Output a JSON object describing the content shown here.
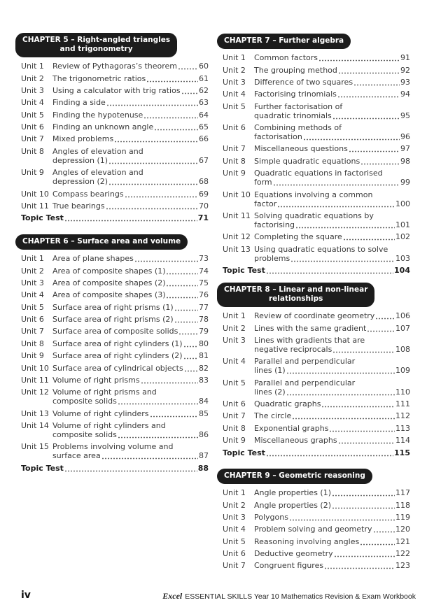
{
  "chapters": [
    {
      "header": [
        "CHAPTER 5 – Right-angled triangles",
        "and trigonometry"
      ],
      "units": [
        {
          "label": "Unit 1",
          "lines": [
            "Review of Pythagoras’s theorem"
          ],
          "page": "60"
        },
        {
          "label": "Unit 2",
          "lines": [
            "The trigonometric ratios"
          ],
          "page": "61"
        },
        {
          "label": "Unit 3",
          "lines": [
            "Using a calculator with trig ratios"
          ],
          "page": "62"
        },
        {
          "label": "Unit 4",
          "lines": [
            "Finding a side"
          ],
          "page": "63"
        },
        {
          "label": "Unit 5",
          "lines": [
            "Finding the hypotenuse"
          ],
          "page": "64"
        },
        {
          "label": "Unit 6",
          "lines": [
            "Finding an unknown angle"
          ],
          "page": "65"
        },
        {
          "label": "Unit 7",
          "lines": [
            "Mixed problems"
          ],
          "page": "66"
        },
        {
          "label": "Unit 8",
          "lines": [
            "Angles of elevation and",
            "depression (1)"
          ],
          "page": "67"
        },
        {
          "label": "Unit 9",
          "lines": [
            "Angles of elevation and",
            "depression (2)"
          ],
          "page": "68"
        },
        {
          "label": "Unit 10",
          "lines": [
            "Compass bearings"
          ],
          "page": "69"
        },
        {
          "label": "Unit 11",
          "lines": [
            "True bearings"
          ],
          "page": "70"
        }
      ],
      "topic_test": {
        "label": "Topic Test",
        "page": "71"
      }
    },
    {
      "header": [
        "CHAPTER 6 – Surface area and volume"
      ],
      "units": [
        {
          "label": "Unit 1",
          "lines": [
            "Area of plane shapes"
          ],
          "page": "73"
        },
        {
          "label": "Unit 2",
          "lines": [
            "Area of composite shapes (1)"
          ],
          "page": "74"
        },
        {
          "label": "Unit 3",
          "lines": [
            "Area of composite shapes (2)"
          ],
          "page": "75"
        },
        {
          "label": "Unit 4",
          "lines": [
            "Area of composite shapes (3)"
          ],
          "page": "76"
        },
        {
          "label": "Unit 5",
          "lines": [
            "Surface area of right prisms (1)"
          ],
          "page": "77"
        },
        {
          "label": "Unit 6",
          "lines": [
            "Surface area of right prisms (2)"
          ],
          "page": "78"
        },
        {
          "label": "Unit 7",
          "lines": [
            "Surface area of composite solids"
          ],
          "page": "79"
        },
        {
          "label": "Unit 8",
          "lines": [
            "Surface area of right cylinders (1)"
          ],
          "page": "80"
        },
        {
          "label": "Unit 9",
          "lines": [
            "Surface area of right cylinders (2)"
          ],
          "page": "81"
        },
        {
          "label": "Unit 10",
          "lines": [
            "Surface area of cylindrical objects"
          ],
          "page": "82"
        },
        {
          "label": "Unit 11",
          "lines": [
            "Volume of right prisms"
          ],
          "page": "83"
        },
        {
          "label": "Unit 12",
          "lines": [
            "Volume of right prisms and",
            "composite solids"
          ],
          "page": "84"
        },
        {
          "label": "Unit 13",
          "lines": [
            "Volume of right cylinders"
          ],
          "page": "85"
        },
        {
          "label": "Unit 14",
          "lines": [
            "Volume of right cylinders and",
            "composite solids"
          ],
          "page": "86"
        },
        {
          "label": "Unit 15",
          "lines": [
            "Problems involving volume and",
            "surface area"
          ],
          "page": "87"
        }
      ],
      "topic_test": {
        "label": "Topic Test",
        "page": "88"
      }
    },
    {
      "header": [
        "CHAPTER 7 – Further algebra"
      ],
      "units": [
        {
          "label": "Unit 1",
          "lines": [
            "Common factors"
          ],
          "page": "91"
        },
        {
          "label": "Unit 2",
          "lines": [
            "The grouping method"
          ],
          "page": "92"
        },
        {
          "label": "Unit 3",
          "lines": [
            "Difference of two squares"
          ],
          "page": "93"
        },
        {
          "label": "Unit 4",
          "lines": [
            "Factorising trinomials"
          ],
          "page": "94"
        },
        {
          "label": "Unit 5",
          "lines": [
            "Further factorisation of",
            "quadratic trinomials"
          ],
          "page": "95"
        },
        {
          "label": "Unit 6",
          "lines": [
            "Combining methods of",
            "factorisation"
          ],
          "page": "96"
        },
        {
          "label": "Unit 7",
          "lines": [
            "Miscellaneous questions"
          ],
          "page": "97"
        },
        {
          "label": "Unit 8",
          "lines": [
            "Simple quadratic equations"
          ],
          "page": "98"
        },
        {
          "label": "Unit 9",
          "lines": [
            "Quadratic equations in factorised",
            "form"
          ],
          "page": "99"
        },
        {
          "label": "Unit 10",
          "lines": [
            "Equations involving a common",
            "factor"
          ],
          "page": "100"
        },
        {
          "label": "Unit 11",
          "lines": [
            "Solving quadratic equations by",
            "factorising"
          ],
          "page": "101"
        },
        {
          "label": "Unit 12",
          "lines": [
            "Completing the square"
          ],
          "page": "102"
        },
        {
          "label": "Unit 13",
          "lines": [
            "Using quadratic equations to solve",
            "problems"
          ],
          "page": "103"
        }
      ],
      "topic_test": {
        "label": "Topic Test",
        "page": "104"
      }
    },
    {
      "header": [
        "CHAPTER 8 – Linear and non-linear",
        "relationships"
      ],
      "units": [
        {
          "label": "Unit 1",
          "lines": [
            "Review of coordinate geometry"
          ],
          "page": "106"
        },
        {
          "label": "Unit 2",
          "lines": [
            "Lines with the same gradient"
          ],
          "page": "107"
        },
        {
          "label": "Unit 3",
          "lines": [
            "Lines with gradients that are",
            "negative reciprocals"
          ],
          "page": "108"
        },
        {
          "label": "Unit 4",
          "lines": [
            "Parallel and perpendicular",
            "lines (1)"
          ],
          "page": "109"
        },
        {
          "label": "Unit 5",
          "lines": [
            "Parallel and perpendicular",
            "lines (2)"
          ],
          "page": "110"
        },
        {
          "label": "Unit 6",
          "lines": [
            "Quadratic graphs"
          ],
          "page": "111"
        },
        {
          "label": "Unit 7",
          "lines": [
            "The circle"
          ],
          "page": "112"
        },
        {
          "label": "Unit 8",
          "lines": [
            "Exponential graphs"
          ],
          "page": "113"
        },
        {
          "label": "Unit 9",
          "lines": [
            "Miscellaneous graphs"
          ],
          "page": "114"
        }
      ],
      "topic_test": {
        "label": "Topic Test",
        "page": "115"
      }
    },
    {
      "header": [
        "CHAPTER 9 – Geometric reasoning"
      ],
      "units": [
        {
          "label": "Unit 1",
          "lines": [
            "Angle properties (1)"
          ],
          "page": "117"
        },
        {
          "label": "Unit 2",
          "lines": [
            "Angle properties (2)"
          ],
          "page": "118"
        },
        {
          "label": "Unit 3",
          "lines": [
            "Polygons"
          ],
          "page": "119"
        },
        {
          "label": "Unit 4",
          "lines": [
            "Problem solving and geometry"
          ],
          "page": "120"
        },
        {
          "label": "Unit 5",
          "lines": [
            "Reasoning involving angles"
          ],
          "page": "121"
        },
        {
          "label": "Unit 6",
          "lines": [
            "Deductive geometry"
          ],
          "page": "122"
        },
        {
          "label": "Unit 7",
          "lines": [
            "Congruent figures"
          ],
          "page": "123"
        }
      ]
    }
  ],
  "footer": {
    "page_number": "iv",
    "brand": "Excel",
    "title": "ESSENTIAL SKILLS Year 10 Mathematics Revision & Exam Workbook"
  }
}
